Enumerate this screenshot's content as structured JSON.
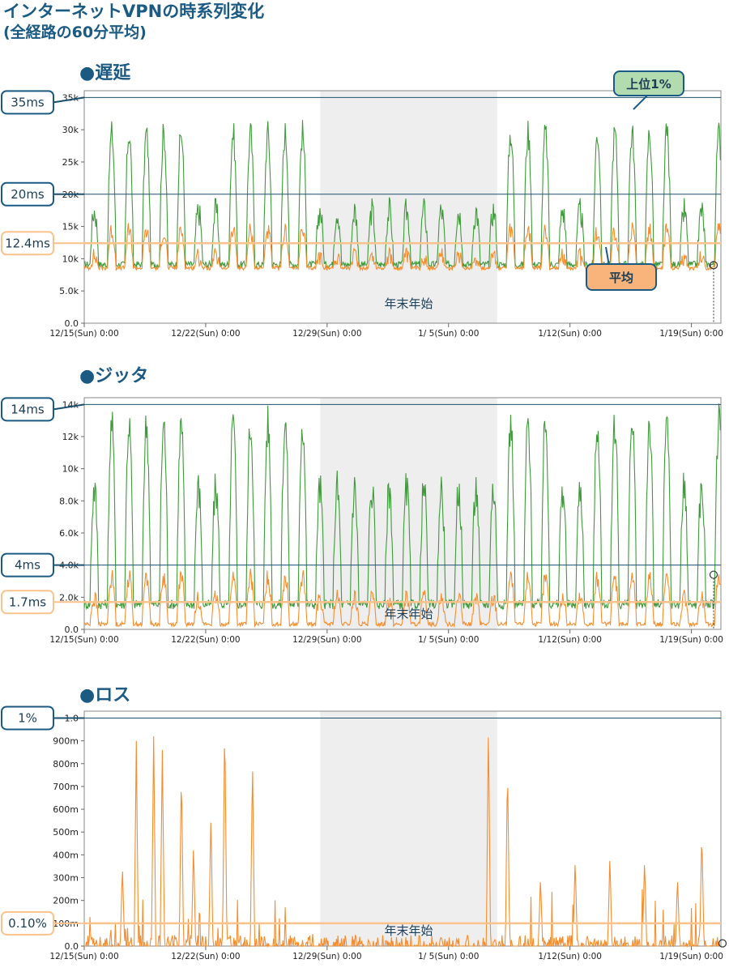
{
  "page": {
    "title": "インターネットVPNの時系列変化",
    "subtitle": "(全経路の60分平均)"
  },
  "colors": {
    "top1": "#3e9a3a",
    "top1_light": "#8fd08a",
    "avg": "#f58d2e",
    "avg_light": "#f8b47a",
    "refline": "#1b4f6e",
    "band": "#eeeeee",
    "callout_border": "#1b5a82",
    "callout_green_fill": "#b3dbb0",
    "callout_orange_fill": "#f8b47a",
    "orange_guide": "#fbc28c"
  },
  "icons": {
    "marker": "circle-marker"
  },
  "chart_data": [
    {
      "type": "line",
      "id": "latency",
      "section_label": "●遅延",
      "ylim": [
        0,
        35000
      ],
      "yticks": [
        "0.0",
        "5.0k",
        "10k",
        "15k",
        "20k",
        "25k",
        "30k",
        "35k"
      ],
      "ytick_values": [
        0,
        5000,
        10000,
        15000,
        20000,
        25000,
        30000,
        35000
      ],
      "xlim_days": [
        0,
        36.7
      ],
      "xticks": [
        "12/15(Sun) 0:00",
        "12/22(Sun) 0:00",
        "12/29(Sun) 0:00",
        "1/ 5(Sun) 0:00",
        "1/12(Sun) 0:00",
        "1/19(Sun) 0:00"
      ],
      "holiday_label": "年末年始",
      "holiday_range": [
        "12/28",
        "1/ 7"
      ],
      "reference_lines": [
        {
          "label": "35ms",
          "value": 35000,
          "style": "dark"
        },
        {
          "label": "20ms",
          "value": 20000,
          "style": "dark"
        },
        {
          "label": "12.4ms",
          "value": 12400,
          "style": "orange"
        }
      ],
      "series": [
        {
          "name": "上位1%",
          "base": 9000,
          "amp_weekday": 20000,
          "amp_holiday": 8000,
          "noise": 3500
        },
        {
          "name": "平均",
          "base": 8500,
          "amp_weekday": 5500,
          "amp_holiday": 1500,
          "noise": 2200
        }
      ],
      "legend_callouts": [
        "上位1%",
        "平均"
      ]
    },
    {
      "type": "line",
      "id": "jitter",
      "section_label": "●ジッタ",
      "ylim": [
        0,
        14000
      ],
      "yticks": [
        "0.0",
        "2.0k",
        "4.0k",
        "6.0k",
        "8.0k",
        "10k",
        "12k",
        "14k"
      ],
      "ytick_values": [
        0,
        2000,
        4000,
        6000,
        8000,
        10000,
        12000,
        14000
      ],
      "xlim_days": [
        0,
        36.7
      ],
      "xticks": [
        "12/15(Sun) 0:00",
        "12/22(Sun) 0:00",
        "12/29(Sun) 0:00",
        "1/ 5(Sun) 0:00",
        "1/12(Sun) 0:00",
        "1/19(Sun) 0:00"
      ],
      "holiday_label": "年末年始",
      "holiday_range": [
        "12/28",
        "1/ 7"
      ],
      "reference_lines": [
        {
          "label": "14ms",
          "value": 14000,
          "style": "dark"
        },
        {
          "label": "4ms",
          "value": 4000,
          "style": "dark"
        },
        {
          "label": "1.7ms",
          "value": 1700,
          "style": "orange"
        }
      ],
      "series": [
        {
          "name": "上位1%",
          "base": 1500,
          "amp_weekday": 11000,
          "amp_holiday": 7000,
          "noise": 2000
        },
        {
          "name": "平均",
          "base": 300,
          "amp_weekday": 2800,
          "amp_holiday": 1500,
          "noise": 900
        }
      ]
    },
    {
      "type": "line",
      "id": "loss",
      "section_label": "●ロス",
      "ylim": [
        0,
        1.0
      ],
      "yticks": [
        "0.0",
        "100m",
        "200m",
        "300m",
        "400m",
        "500m",
        "600m",
        "700m",
        "800m",
        "900m",
        "1.0"
      ],
      "ytick_values": [
        0,
        0.1,
        0.2,
        0.3,
        0.4,
        0.5,
        0.6,
        0.7,
        0.8,
        0.9,
        1.0
      ],
      "xlim_days": [
        0,
        36.7
      ],
      "xticks": [
        "12/15(Sun) 0:00",
        "12/22(Sun) 0:00",
        "12/29(Sun) 0:00",
        "1/ 5(Sun) 0:00",
        "1/12(Sun) 0:00",
        "1/19(Sun) 0:00"
      ],
      "holiday_label": "年末年始",
      "holiday_range": [
        "12/28",
        "1/ 7"
      ],
      "reference_lines": [
        {
          "label": "1%",
          "value": 1.0,
          "style": "dark"
        },
        {
          "label": "0.10%",
          "value": 0.1,
          "style": "orange"
        }
      ],
      "spikes": [
        {
          "day": 3.0,
          "v": 0.9
        },
        {
          "day": 4.0,
          "v": 0.92
        },
        {
          "day": 4.5,
          "v": 0.86
        },
        {
          "day": 5.6,
          "v": 0.78
        },
        {
          "day": 8.1,
          "v": 1.0
        },
        {
          "day": 9.7,
          "v": 0.82
        },
        {
          "day": 2.2,
          "v": 0.35
        },
        {
          "day": 6.3,
          "v": 0.45
        },
        {
          "day": 7.3,
          "v": 0.58
        },
        {
          "day": 23.3,
          "v": 0.98
        },
        {
          "day": 24.4,
          "v": 0.8
        },
        {
          "day": 35.6,
          "v": 0.5
        },
        {
          "day": 28.3,
          "v": 0.38
        },
        {
          "day": 30.3,
          "v": 0.4
        },
        {
          "day": 32.3,
          "v": 0.38
        },
        {
          "day": 26.3,
          "v": 0.3
        },
        {
          "day": 34.2,
          "v": 0.3
        }
      ],
      "series": [
        {
          "name": "平均"
        }
      ]
    }
  ]
}
